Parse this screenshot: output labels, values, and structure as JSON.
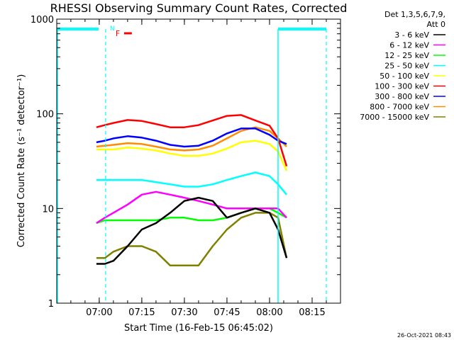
{
  "colors": {
    "background": "#ffffff",
    "axis": "#000000",
    "attenuator_marker": "#00ffff",
    "flare_marker": "#ff0000"
  },
  "chart_data": {
    "type": "line",
    "title": "RHESSI Observing Summary Count Rates, Corrected",
    "xlabel": "Start Time (16-Feb-15 06:45:02)",
    "ylabel": "Corrected Count Rate (s⁻¹ detector⁻¹)",
    "yscale": "log",
    "ylim": [
      1,
      1000
    ],
    "xlim": [
      "06:45:02",
      "08:25:00"
    ],
    "x_ticks": [
      "07:00",
      "07:15",
      "07:30",
      "07:45",
      "08:00",
      "08:15"
    ],
    "y_ticks": [
      "1",
      "10",
      "100",
      "1000"
    ],
    "timestamp": "26-Oct-2021 08:43",
    "legend": {
      "header": [
        "Det 1,3,5,6,7,9,",
        "Att 0"
      ],
      "placement": "right"
    },
    "markers": [
      {
        "label": "N",
        "color": "#00ffff"
      },
      {
        "label": "F",
        "color": "#ff0000"
      }
    ],
    "x": [
      "06:59",
      "07:02",
      "07:05",
      "07:10",
      "07:15",
      "07:20",
      "07:25",
      "07:30",
      "07:35",
      "07:40",
      "07:45",
      "07:50",
      "07:55",
      "08:00",
      "08:03",
      "08:06"
    ],
    "series": [
      {
        "name": "3 - 6 keV",
        "color": "#000000",
        "values": [
          2.6,
          2.6,
          2.8,
          4,
          6,
          7,
          9,
          12,
          13,
          12,
          8,
          9,
          10,
          9,
          6,
          3
        ]
      },
      {
        "name": "6 - 12 keV",
        "color": "#ff00ff",
        "values": [
          7,
          8,
          9,
          11,
          14,
          15,
          14,
          13,
          12,
          11,
          10,
          10,
          10,
          10,
          10,
          8
        ]
      },
      {
        "name": "12 - 25 keV",
        "color": "#00ff00",
        "values": [
          7,
          7.5,
          7.5,
          7.5,
          7.5,
          7.5,
          8,
          8,
          7.5,
          7.5,
          8,
          9,
          10,
          10,
          9,
          8
        ]
      },
      {
        "name": "25 - 50 keV",
        "color": "#00ffff",
        "values": [
          20,
          20,
          20,
          20,
          20,
          19,
          18,
          17,
          17,
          18,
          20,
          22,
          24,
          22,
          18,
          14
        ]
      },
      {
        "name": "50 - 100 keV",
        "color": "#ffff00",
        "values": [
          42,
          42,
          42,
          44,
          43,
          41,
          38,
          36,
          36,
          38,
          43,
          50,
          52,
          48,
          40,
          25
        ]
      },
      {
        "name": "100 - 300 keV",
        "color": "#ff0000",
        "values": [
          72,
          76,
          80,
          86,
          84,
          78,
          72,
          72,
          76,
          85,
          95,
          97,
          85,
          75,
          55,
          28
        ]
      },
      {
        "name": "300 - 800 keV",
        "color": "#0000ff",
        "values": [
          50,
          52,
          55,
          58,
          56,
          52,
          47,
          45,
          46,
          52,
          62,
          70,
          70,
          60,
          52,
          48
        ]
      },
      {
        "name": "800 - 7000 keV",
        "color": "#ff8c00",
        "values": [
          45,
          46,
          47,
          49,
          48,
          45,
          42,
          41,
          42,
          46,
          55,
          66,
          72,
          66,
          55,
          45
        ]
      },
      {
        "name": "7000 - 15000 keV",
        "color": "#808000",
        "values": [
          3,
          3,
          3.5,
          4,
          4,
          3.5,
          2.5,
          2.5,
          2.5,
          4,
          6,
          8,
          9,
          9,
          8,
          3
        ]
      }
    ]
  }
}
